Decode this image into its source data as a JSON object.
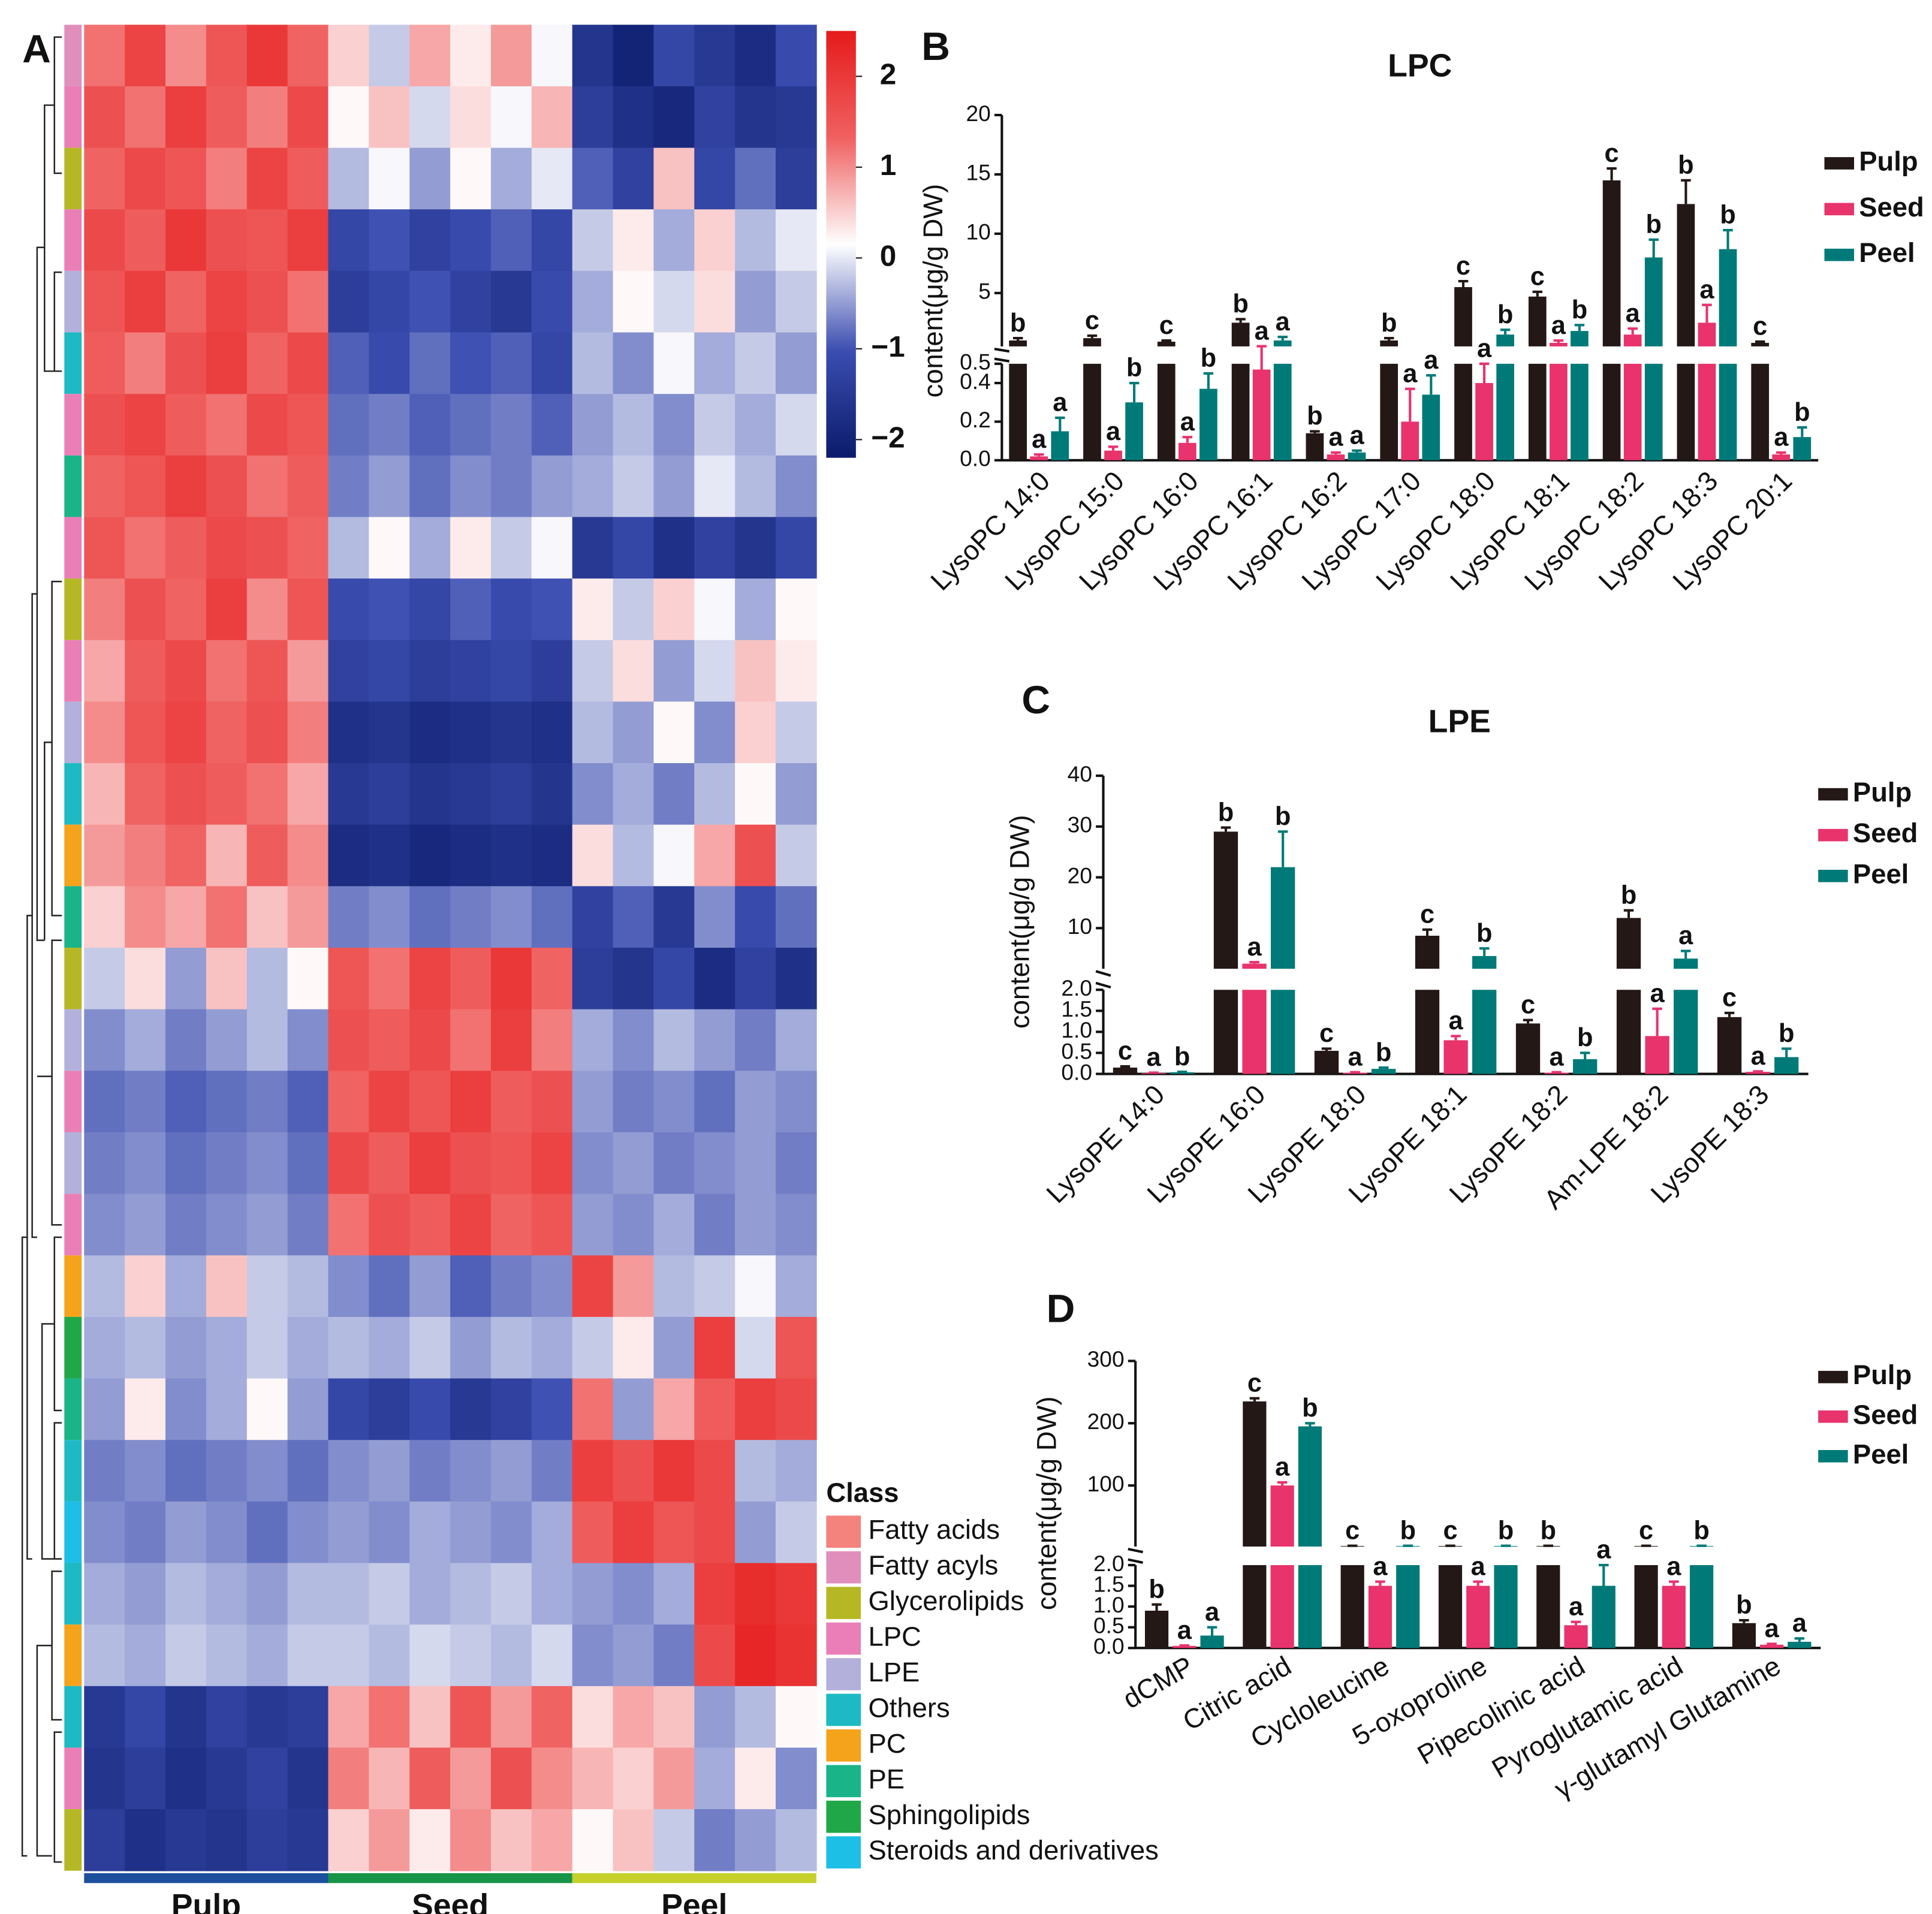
{
  "chart_data": [
    {
      "type": "heatmap",
      "panel": "A",
      "matrix": [
        [
          1.2,
          1.8,
          1.0,
          1.5,
          2.0,
          1.3,
          0.5,
          -0.2,
          0.8,
          0.3,
          0.9,
          0.1,
          -1.6,
          -2.0,
          -1.2,
          -1.5,
          -1.8,
          -1.1
        ],
        [
          1.6,
          1.2,
          1.9,
          1.4,
          1.1,
          1.7,
          0.2,
          0.6,
          -0.1,
          0.4,
          0.1,
          0.7,
          -1.4,
          -1.7,
          -1.9,
          -1.3,
          -1.6,
          -1.5
        ],
        [
          1.3,
          1.7,
          1.5,
          1.1,
          1.8,
          1.4,
          -0.3,
          0.1,
          -0.5,
          0.2,
          -0.4,
          0.0,
          -0.9,
          -1.3,
          0.6,
          -1.2,
          -0.8,
          -1.4
        ],
        [
          1.7,
          1.4,
          2.0,
          1.6,
          1.5,
          1.9,
          -1.2,
          -1.0,
          -1.3,
          -1.1,
          -0.9,
          -1.2,
          -0.2,
          0.3,
          -0.4,
          0.5,
          -0.3,
          0.0
        ],
        [
          1.5,
          1.9,
          1.3,
          1.8,
          1.6,
          1.2,
          -1.4,
          -1.2,
          -1.0,
          -1.3,
          -1.5,
          -1.1,
          -0.4,
          0.2,
          -0.1,
          0.4,
          -0.5,
          -0.2
        ],
        [
          1.4,
          1.1,
          1.6,
          1.9,
          1.3,
          1.7,
          -0.9,
          -1.1,
          -0.8,
          -1.0,
          -0.9,
          -1.2,
          -0.3,
          -0.6,
          0.1,
          -0.4,
          -0.2,
          -0.5
        ],
        [
          1.6,
          1.8,
          1.4,
          1.2,
          1.7,
          1.5,
          -0.8,
          -0.7,
          -0.9,
          -0.8,
          -0.7,
          -0.9,
          -0.5,
          -0.3,
          -0.6,
          -0.2,
          -0.4,
          -0.1
        ],
        [
          1.3,
          1.5,
          1.9,
          1.6,
          1.2,
          1.4,
          -0.7,
          -0.5,
          -0.8,
          -0.6,
          -0.7,
          -0.5,
          -0.4,
          -0.2,
          -0.5,
          0.0,
          -0.3,
          -0.6
        ],
        [
          1.5,
          1.2,
          1.4,
          1.7,
          1.6,
          1.3,
          -0.3,
          0.2,
          -0.4,
          0.3,
          -0.2,
          0.1,
          -1.5,
          -1.2,
          -1.7,
          -1.3,
          -1.6,
          -1.2
        ],
        [
          1.1,
          1.6,
          1.3,
          1.9,
          1.0,
          1.5,
          -1.1,
          -1.0,
          -1.2,
          -0.9,
          -1.1,
          -1.0,
          0.3,
          -0.2,
          0.5,
          0.1,
          -0.4,
          0.2
        ],
        [
          0.8,
          1.4,
          1.7,
          1.2,
          1.5,
          0.9,
          -1.3,
          -1.2,
          -1.4,
          -1.3,
          -1.2,
          -1.4,
          -0.2,
          0.4,
          -0.5,
          -0.1,
          0.6,
          0.3
        ],
        [
          1.0,
          1.5,
          1.8,
          1.3,
          1.6,
          1.1,
          -1.7,
          -1.6,
          -1.8,
          -1.7,
          -1.6,
          -1.7,
          -0.3,
          -0.5,
          0.2,
          -0.6,
          0.5,
          -0.2
        ],
        [
          0.7,
          1.3,
          1.6,
          1.4,
          1.2,
          0.8,
          -1.5,
          -1.4,
          -1.6,
          -1.5,
          -1.4,
          -1.6,
          -0.6,
          -0.4,
          -0.7,
          -0.3,
          0.2,
          -0.5
        ],
        [
          0.9,
          1.1,
          1.3,
          0.7,
          1.4,
          1.0,
          -1.8,
          -1.7,
          -1.9,
          -1.8,
          -1.7,
          -1.8,
          0.4,
          -0.3,
          0.1,
          0.8,
          1.6,
          -0.2
        ],
        [
          0.5,
          1.0,
          0.8,
          1.2,
          0.6,
          0.9,
          -0.7,
          -0.6,
          -0.8,
          -0.7,
          -0.6,
          -0.8,
          -1.3,
          -0.9,
          -1.5,
          -0.6,
          -1.1,
          -0.8
        ],
        [
          -0.2,
          0.4,
          -0.5,
          0.6,
          -0.3,
          0.2,
          1.5,
          1.2,
          1.8,
          1.4,
          2.0,
          1.3,
          -1.4,
          -1.6,
          -1.2,
          -1.8,
          -1.3,
          -1.7
        ],
        [
          -0.6,
          -0.4,
          -0.7,
          -0.5,
          -0.3,
          -0.6,
          1.6,
          1.4,
          1.7,
          1.2,
          1.9,
          1.1,
          -0.4,
          -0.6,
          -0.3,
          -0.5,
          -0.7,
          -0.4
        ],
        [
          -0.8,
          -0.7,
          -0.9,
          -0.8,
          -0.7,
          -0.9,
          1.3,
          1.8,
          1.5,
          1.9,
          1.4,
          1.6,
          -0.5,
          -0.7,
          -0.6,
          -0.8,
          -0.5,
          -0.6
        ],
        [
          -0.7,
          -0.6,
          -0.8,
          -0.7,
          -0.6,
          -0.8,
          1.7,
          1.4,
          1.9,
          1.6,
          1.5,
          1.8,
          -0.6,
          -0.5,
          -0.7,
          -0.6,
          -0.5,
          -0.7
        ],
        [
          -0.6,
          -0.5,
          -0.7,
          -0.6,
          -0.5,
          -0.7,
          1.2,
          1.6,
          1.4,
          1.8,
          1.3,
          1.5,
          -0.5,
          -0.6,
          -0.4,
          -0.7,
          -0.5,
          -0.6
        ],
        [
          -0.3,
          0.5,
          -0.4,
          0.6,
          -0.2,
          -0.3,
          -0.6,
          -0.8,
          -0.5,
          -0.9,
          -0.7,
          -0.6,
          1.8,
          0.9,
          -0.3,
          -0.2,
          0.1,
          -0.4
        ],
        [
          -0.4,
          -0.3,
          -0.5,
          -0.4,
          -0.2,
          -0.4,
          -0.3,
          -0.4,
          -0.2,
          -0.5,
          -0.3,
          -0.4,
          -0.2,
          0.3,
          -0.5,
          1.9,
          -0.1,
          1.5
        ],
        [
          -0.5,
          0.3,
          -0.6,
          -0.4,
          0.2,
          -0.5,
          -1.2,
          -1.4,
          -1.1,
          -1.5,
          -1.3,
          -1.0,
          1.2,
          -0.5,
          0.8,
          1.4,
          1.9,
          1.7
        ],
        [
          -0.7,
          -0.6,
          -0.8,
          -0.7,
          -0.6,
          -0.8,
          -0.6,
          -0.5,
          -0.7,
          -0.6,
          -0.5,
          -0.7,
          1.9,
          1.6,
          2.0,
          1.7,
          -0.3,
          -0.4
        ],
        [
          -0.6,
          -0.7,
          -0.5,
          -0.6,
          -0.8,
          -0.6,
          -0.5,
          -0.6,
          -0.4,
          -0.5,
          -0.6,
          -0.4,
          1.4,
          1.9,
          1.5,
          1.7,
          -0.5,
          -0.2
        ],
        [
          -0.4,
          -0.5,
          -0.3,
          -0.4,
          -0.5,
          -0.3,
          -0.3,
          -0.2,
          -0.4,
          -0.3,
          -0.2,
          -0.4,
          -0.5,
          -0.6,
          -0.4,
          1.9,
          2.2,
          2.0
        ],
        [
          -0.3,
          -0.4,
          -0.2,
          -0.3,
          -0.4,
          -0.2,
          -0.2,
          -0.3,
          -0.1,
          -0.2,
          -0.3,
          -0.1,
          -0.6,
          -0.5,
          -0.7,
          1.7,
          2.3,
          2.1
        ],
        [
          -1.5,
          -1.2,
          -1.6,
          -1.3,
          -1.5,
          -1.4,
          0.8,
          1.2,
          0.6,
          1.5,
          0.9,
          1.3,
          0.4,
          0.8,
          0.6,
          -0.5,
          -0.3,
          0.2
        ],
        [
          -1.6,
          -1.4,
          -1.7,
          -1.5,
          -1.3,
          -1.6,
          1.1,
          0.7,
          1.4,
          0.9,
          1.6,
          1.0,
          0.7,
          0.5,
          0.9,
          -0.4,
          0.3,
          -0.6
        ],
        [
          -1.4,
          -1.7,
          -1.5,
          -1.6,
          -1.4,
          -1.5,
          0.5,
          0.9,
          0.3,
          1.0,
          0.6,
          0.8,
          0.2,
          0.6,
          -0.2,
          -0.7,
          -0.5,
          -0.3
        ]
      ],
      "groups": [
        {
          "name": "Pulp",
          "color": "#1c4f9c"
        },
        {
          "name": "Seed",
          "color": "#179447"
        },
        {
          "name": "Peel",
          "color": "#c5d02a"
        }
      ],
      "row_classes": [
        "Fatty acyls",
        "LPC",
        "Glycerolipids",
        "LPC",
        "LPE",
        "Others",
        "LPC",
        "PE",
        "LPC",
        "Glycerolipids",
        "LPC",
        "LPE",
        "Others",
        "PC",
        "PE",
        "Glycerolipids",
        "LPE",
        "LPC",
        "LPE",
        "LPC",
        "PC",
        "Sphingolipids",
        "PE",
        "Others",
        "Steroids and derivatives",
        "Others",
        "PC",
        "Others",
        "LPC",
        "Glycerolipids"
      ],
      "class_title": "Class",
      "classes": [
        {
          "name": "Fatty acids",
          "color": "#f4837d"
        },
        {
          "name": "Fatty acyls",
          "color": "#e08fbd"
        },
        {
          "name": "Glycerolipids",
          "color": "#b5b824"
        },
        {
          "name": "LPC",
          "color": "#ea7fb8"
        },
        {
          "name": "LPE",
          "color": "#b3b0dc"
        },
        {
          "name": "Others",
          "color": "#1dbac4"
        },
        {
          "name": "PC",
          "color": "#f5a31b"
        },
        {
          "name": "PE",
          "color": "#1ab489"
        },
        {
          "name": "Sphingolipids",
          "color": "#20a848"
        },
        {
          "name": "Steroids and derivatives",
          "color": "#1ebfe6"
        }
      ],
      "zlim": [
        -2.2,
        2.5
      ],
      "zticks": [
        {
          "value": -2,
          "label": "−2"
        },
        {
          "value": -1,
          "label": "−1"
        },
        0,
        1,
        2
      ],
      "colors": [
        "#0b1b6b",
        "#3b4db0",
        "#ffffff",
        "#f06060",
        "#e51b1b"
      ]
    },
    {
      "type": "bar",
      "panel": "B",
      "title": "LPC",
      "y_label": "content(μg/g DW)",
      "categories": [
        "LysoPC 14:0",
        "LysoPC 15:0",
        "LysoPC 16:0",
        "LysoPC 16:1",
        "LysoPC 16:2",
        "LysoPC 17:0",
        "LysoPC 18:0",
        "LysoPC 18:1",
        "LysoPC 18:2",
        "LysoPC 18:3",
        "LysoPC 20:1"
      ],
      "ylim": [
        0,
        20
      ],
      "ybreak": 0.5,
      "yticks": [
        {
          "value": 0,
          "label": "0.0"
        },
        0.2,
        0.4,
        0.5,
        5,
        10,
        15,
        20
      ],
      "series": [
        {
          "name": "Pulp",
          "color": "#231815",
          "values": [
            1.0,
            1.2,
            0.9,
            2.5,
            0.14,
            1.0,
            5.5,
            4.7,
            14.5,
            12.5,
            0.8
          ],
          "errors": [
            0.2,
            0.2,
            0.1,
            0.3,
            0.01,
            0.2,
            0.5,
            0.4,
            1.0,
            2.0,
            0.1
          ],
          "letters": [
            "b",
            "c",
            "c",
            "b",
            "b",
            "b",
            "c",
            "c",
            "c",
            "b",
            "c"
          ]
        },
        {
          "name": "Seed",
          "color": "#e8336d",
          "values": [
            0.02,
            0.05,
            0.09,
            0.47,
            0.03,
            0.2,
            0.4,
            0.8,
            1.5,
            2.5,
            0.03
          ],
          "errors": [
            0.01,
            0.02,
            0.03,
            0.05,
            0.01,
            0.17,
            0.1,
            0.2,
            0.5,
            1.5,
            0.01
          ],
          "letters": [
            "a",
            "a",
            "a",
            "a",
            "a",
            "a",
            "a",
            "a",
            "a",
            "a",
            "a"
          ]
        },
        {
          "name": "Peel",
          "color": "#007a78",
          "values": [
            0.15,
            0.3,
            0.37,
            1.0,
            0.04,
            0.34,
            1.5,
            1.8,
            8.0,
            8.7,
            0.12
          ],
          "errors": [
            0.07,
            0.1,
            0.08,
            0.3,
            0.01,
            0.1,
            0.4,
            0.5,
            1.5,
            1.6,
            0.05
          ],
          "letters": [
            "a",
            "b",
            "b",
            "a",
            "a",
            "a",
            "b",
            "b",
            "b",
            "b",
            "b"
          ]
        }
      ]
    },
    {
      "type": "bar",
      "panel": "C",
      "title": "LPE",
      "y_label": "content(μg/g DW)",
      "categories": [
        "LysoPE 14:0",
        "LysoPE 16:0",
        "LysoPE 18:0",
        "LysoPE 18:1",
        "LysoPE 18:2",
        "Am-LPE 18:2",
        "LysoPE 18:3"
      ],
      "ylim": [
        0,
        40
      ],
      "ybreak": 2,
      "yticks": [
        {
          "value": 0,
          "label": "0.0"
        },
        0.5,
        {
          "value": 1,
          "label": "1.0"
        },
        1.5,
        {
          "value": 2,
          "label": "2.0"
        },
        10,
        20,
        30,
        40
      ],
      "series": [
        {
          "name": "Pulp",
          "color": "#231815",
          "values": [
            0.15,
            29,
            0.55,
            8.5,
            1.2,
            12,
            1.35
          ],
          "errors": [
            0.03,
            0.8,
            0.05,
            1.2,
            0.08,
            1.5,
            0.1
          ],
          "letters": [
            "c",
            "b",
            "c",
            "c",
            "c",
            "b",
            "c"
          ]
        },
        {
          "name": "Seed",
          "color": "#e8336d",
          "values": [
            0.02,
            3,
            0.03,
            0.8,
            0.03,
            0.9,
            0.05
          ],
          "errors": [
            0.01,
            0.3,
            0.01,
            0.1,
            0.01,
            0.65,
            0.01
          ],
          "letters": [
            "a",
            "a",
            "a",
            "a",
            "a",
            "a",
            "a"
          ]
        },
        {
          "name": "Peel",
          "color": "#007a78",
          "values": [
            0.04,
            22,
            0.12,
            4.5,
            0.35,
            4,
            0.4
          ],
          "errors": [
            0.01,
            7,
            0.03,
            1.5,
            0.15,
            1.5,
            0.2
          ],
          "letters": [
            "b",
            "b",
            "b",
            "b",
            "b",
            "a",
            "b"
          ]
        }
      ]
    },
    {
      "type": "bar",
      "panel": "D",
      "y_label": "content(μg/g DW)",
      "categories": [
        "dCMP",
        "Citric acid",
        "Cycloleucine",
        "5-oxoproline",
        "Pipecolinic acid",
        "Pyroglutamic acid",
        "γ-glutamyl Glutamine"
      ],
      "ylim": [
        0,
        300
      ],
      "ybreak": 2,
      "yticks": [
        {
          "value": 0,
          "label": "0.0"
        },
        0.5,
        {
          "value": 1,
          "label": "1.0"
        },
        1.5,
        {
          "value": 2,
          "label": "2.0"
        },
        100,
        200,
        300
      ],
      "series": [
        {
          "name": "Pulp",
          "color": "#231815",
          "values": [
            0.9,
            235,
            3,
            3,
            3,
            3,
            0.6
          ],
          "errors": [
            0.15,
            5,
            0.3,
            0.3,
            0.3,
            0.3,
            0.07
          ],
          "letters": [
            "b",
            "c",
            "c",
            "c",
            "b",
            "c",
            "b"
          ]
        },
        {
          "name": "Seed",
          "color": "#e8336d",
          "values": [
            0.05,
            100,
            1.5,
            1.5,
            0.55,
            1.5,
            0.08
          ],
          "errors": [
            0.01,
            5,
            0.1,
            0.1,
            0.08,
            0.1,
            0.02
          ],
          "letters": [
            "a",
            "a",
            "a",
            "a",
            "a",
            "a",
            "a"
          ]
        },
        {
          "name": "Peel",
          "color": "#007a78",
          "values": [
            0.3,
            195,
            3,
            3,
            1.5,
            3,
            0.15
          ],
          "errors": [
            0.2,
            5,
            0.3,
            0.3,
            0.5,
            0.3,
            0.08
          ],
          "letters": [
            "a",
            "b",
            "b",
            "b",
            "a",
            "b",
            "a"
          ]
        }
      ]
    }
  ]
}
